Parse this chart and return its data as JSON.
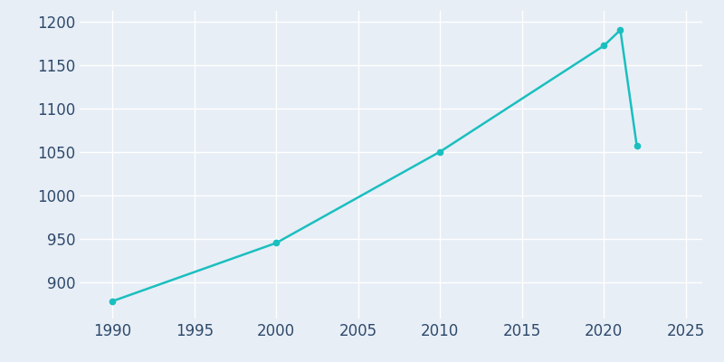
{
  "years": [
    1990,
    2000,
    2010,
    2020,
    2021,
    2022
  ],
  "population": [
    878,
    945,
    1050,
    1172,
    1190,
    1057
  ],
  "line_color": "#1ABFBF",
  "marker_color": "#1ABFBF",
  "bg_color": "#E8EEF6",
  "grid_color": "#FFFFFF",
  "text_color": "#2E4A6B",
  "xlim": [
    1988,
    2026
  ],
  "ylim": [
    858,
    1212
  ],
  "xticks": [
    1990,
    1995,
    2000,
    2005,
    2010,
    2015,
    2020,
    2025
  ],
  "yticks": [
    900,
    950,
    1000,
    1050,
    1100,
    1150,
    1200
  ],
  "line_width": 1.8,
  "marker_size": 4.5,
  "tick_fontsize": 12
}
